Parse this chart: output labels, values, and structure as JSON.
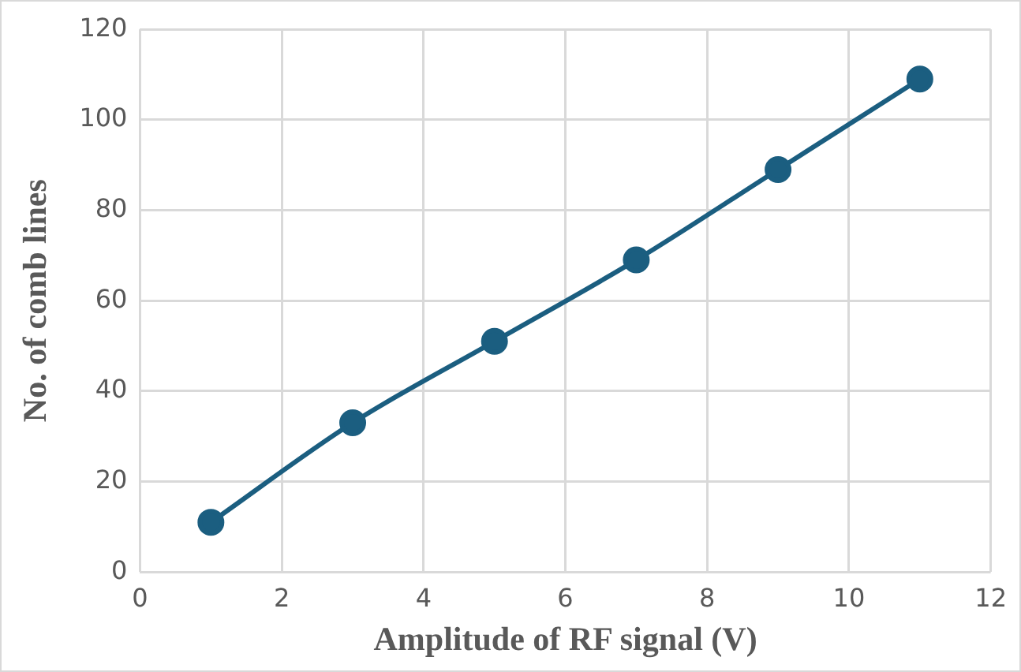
{
  "chart_data": {
    "type": "line",
    "xlabel": "Amplitude of RF signal (V)",
    "ylabel": "No. of comb lines",
    "x": [
      1,
      3,
      5,
      7,
      9,
      11
    ],
    "series": [
      {
        "color": "#1b5e80",
        "values": [
          11,
          33,
          51,
          69,
          89,
          109
        ]
      }
    ],
    "xlim": [
      0,
      12
    ],
    "xticks": [
      0,
      2,
      4,
      6,
      8,
      10,
      12
    ],
    "ylim": [
      0,
      120
    ],
    "yticks": [
      0,
      20,
      40,
      60,
      80,
      100,
      120
    ],
    "grid": true,
    "legend": false,
    "marker": "circle",
    "line_style": "solid"
  }
}
